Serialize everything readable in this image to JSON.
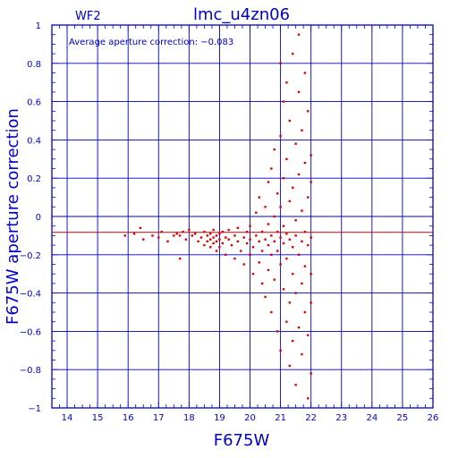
{
  "chart_data": {
    "type": "scatter",
    "title": "lmc_u4zn06",
    "subtitle": "WF2",
    "annotation": "Average aperture correction: −0.083",
    "xlabel": "F675W",
    "ylabel": "F675W aperture correction",
    "xlim": [
      13.5,
      26
    ],
    "ylim": [
      -1,
      1
    ],
    "x_ticks": [
      "14",
      "15",
      "16",
      "17",
      "18",
      "19",
      "20",
      "21",
      "22",
      "23",
      "24",
      "25",
      "26"
    ],
    "y_ticks": [
      "1",
      "0.8",
      "0.6",
      "0.4",
      "0.2",
      "0",
      "−0.2",
      "−0.4",
      "−0.6",
      "−0.8",
      "−1"
    ],
    "grid": true,
    "reference_line": {
      "y": -0.083,
      "color": "#cc0000"
    },
    "colors": {
      "axes": "#0000cc",
      "points": "#dd0000"
    },
    "points": [
      [
        15.9,
        -0.1
      ],
      [
        16.2,
        -0.09
      ],
      [
        16.4,
        -0.06
      ],
      [
        16.5,
        -0.12
      ],
      [
        16.8,
        -0.1
      ],
      [
        17.0,
        -0.11
      ],
      [
        17.1,
        -0.08
      ],
      [
        17.3,
        -0.13
      ],
      [
        17.5,
        -0.1
      ],
      [
        17.6,
        -0.09
      ],
      [
        17.7,
        -0.1
      ],
      [
        17.7,
        -0.22
      ],
      [
        17.8,
        -0.08
      ],
      [
        17.9,
        -0.12
      ],
      [
        18.0,
        -0.07
      ],
      [
        18.1,
        -0.1
      ],
      [
        18.2,
        -0.09
      ],
      [
        18.3,
        -0.13
      ],
      [
        18.4,
        -0.11
      ],
      [
        18.5,
        -0.08
      ],
      [
        18.5,
        -0.15
      ],
      [
        18.6,
        -0.1
      ],
      [
        18.6,
        -0.13
      ],
      [
        18.7,
        -0.09
      ],
      [
        18.7,
        -0.12
      ],
      [
        18.7,
        -0.16
      ],
      [
        18.8,
        -0.07
      ],
      [
        18.8,
        -0.11
      ],
      [
        18.8,
        -0.14
      ],
      [
        18.9,
        -0.1
      ],
      [
        18.9,
        -0.13
      ],
      [
        18.9,
        -0.18
      ],
      [
        19.0,
        -0.09
      ],
      [
        19.0,
        -0.12
      ],
      [
        19.0,
        -0.16
      ],
      [
        19.1,
        -0.08
      ],
      [
        19.1,
        -0.14
      ],
      [
        19.2,
        -0.11
      ],
      [
        19.2,
        -0.2
      ],
      [
        19.3,
        -0.12
      ],
      [
        19.3,
        -0.07
      ],
      [
        19.4,
        -0.15
      ],
      [
        19.5,
        -0.1
      ],
      [
        19.5,
        -0.22
      ],
      [
        19.6,
        -0.13
      ],
      [
        19.6,
        -0.06
      ],
      [
        19.7,
        -0.18
      ],
      [
        19.8,
        -0.11
      ],
      [
        19.8,
        -0.25
      ],
      [
        19.9,
        -0.08
      ],
      [
        19.9,
        -0.14
      ],
      [
        20.0,
        -0.12
      ],
      [
        20.0,
        -0.2
      ],
      [
        20.0,
        -0.05
      ],
      [
        20.1,
        -0.16
      ],
      [
        20.1,
        -0.3
      ],
      [
        20.2,
        -0.1
      ],
      [
        20.2,
        0.02
      ],
      [
        20.3,
        -0.13
      ],
      [
        20.3,
        -0.24
      ],
      [
        20.3,
        0.1
      ],
      [
        20.4,
        -0.08
      ],
      [
        20.4,
        -0.18
      ],
      [
        20.4,
        -0.35
      ],
      [
        20.5,
        -0.12
      ],
      [
        20.5,
        0.05
      ],
      [
        20.5,
        -0.42
      ],
      [
        20.6,
        -0.15
      ],
      [
        20.6,
        -0.04
      ],
      [
        20.6,
        0.18
      ],
      [
        20.6,
        -0.28
      ],
      [
        20.7,
        -0.1
      ],
      [
        20.7,
        -0.2
      ],
      [
        20.7,
        0.25
      ],
      [
        20.7,
        -0.5
      ],
      [
        20.8,
        -0.13
      ],
      [
        20.8,
        0.0
      ],
      [
        20.8,
        -0.33
      ],
      [
        20.8,
        0.35
      ],
      [
        20.9,
        -0.08
      ],
      [
        20.9,
        -0.18
      ],
      [
        20.9,
        0.12
      ],
      [
        20.9,
        -0.6
      ],
      [
        21.0,
        -0.11
      ],
      [
        21.0,
        -0.25
      ],
      [
        21.0,
        0.42
      ],
      [
        21.0,
        -0.7
      ],
      [
        21.0,
        0.05
      ],
      [
        21.0,
        0.8
      ],
      [
        21.1,
        -0.14
      ],
      [
        21.1,
        -0.38
      ],
      [
        21.1,
        0.2
      ],
      [
        21.1,
        -0.05
      ],
      [
        21.1,
        0.6
      ],
      [
        21.2,
        -0.09
      ],
      [
        21.2,
        -0.22
      ],
      [
        21.2,
        0.3
      ],
      [
        21.2,
        -0.55
      ],
      [
        21.2,
        0.7
      ],
      [
        21.3,
        -0.12
      ],
      [
        21.3,
        0.08
      ],
      [
        21.3,
        -0.45
      ],
      [
        21.3,
        -0.78
      ],
      [
        21.3,
        0.5
      ],
      [
        21.4,
        -0.16
      ],
      [
        21.4,
        -0.3
      ],
      [
        21.4,
        0.15
      ],
      [
        21.4,
        -0.65
      ],
      [
        21.4,
        0.85
      ],
      [
        21.5,
        -0.1
      ],
      [
        21.5,
        -0.02
      ],
      [
        21.5,
        -0.4
      ],
      [
        21.5,
        0.38
      ],
      [
        21.5,
        -0.88
      ],
      [
        21.6,
        -0.2
      ],
      [
        21.6,
        0.22
      ],
      [
        21.6,
        -0.58
      ],
      [
        21.6,
        0.65
      ],
      [
        21.6,
        0.95
      ],
      [
        21.7,
        -0.13
      ],
      [
        21.7,
        0.03
      ],
      [
        21.7,
        -0.35
      ],
      [
        21.7,
        -0.72
      ],
      [
        21.7,
        0.45
      ],
      [
        21.8,
        -0.08
      ],
      [
        21.8,
        -0.26
      ],
      [
        21.8,
        0.28
      ],
      [
        21.8,
        -0.5
      ],
      [
        21.8,
        0.75
      ],
      [
        21.9,
        -0.15
      ],
      [
        21.9,
        0.1
      ],
      [
        21.9,
        -0.62
      ],
      [
        21.9,
        0.55
      ],
      [
        21.9,
        -0.95
      ],
      [
        22.0,
        -0.11
      ],
      [
        22.0,
        -0.3
      ],
      [
        22.0,
        0.18
      ],
      [
        22.0,
        -0.45
      ],
      [
        22.0,
        0.32
      ],
      [
        22.0,
        -0.82
      ]
    ]
  }
}
